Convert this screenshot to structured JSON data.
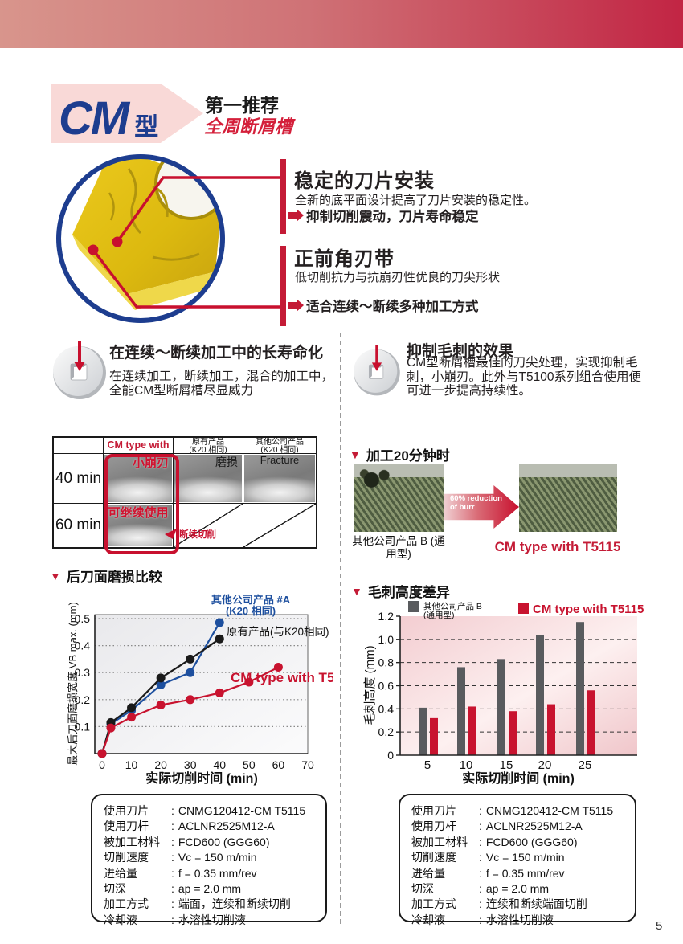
{
  "page_number": "5",
  "colors": {
    "accent_red": "#c41b36",
    "dark_blue": "#1d3d8f",
    "banner_left": "#d8958c",
    "banner_right": "#c22544",
    "bar_gray": "#595b5e"
  },
  "hero": {
    "badge_cm": "CM",
    "badge_type": "型",
    "tagline_1": "第一推荐",
    "tagline_2": "全周断屑槽",
    "feature_1": {
      "title": "稳定的刀片安装",
      "body": "全新的底平面设计提高了刀片安装的稳定性。",
      "point": "抑制切削震动，刀片寿命稳定"
    },
    "feature_2": {
      "title": "正前角刃带",
      "body": "低切削抗力与抗崩刃性优良的刀尖形状",
      "point": "适合连续～断续多种加工方式"
    }
  },
  "benefits": {
    "left": {
      "heading": "在连续～断续加工中的长寿命化",
      "body": "在连续加工，断续加工，混合的加工中，全能CM型断屑槽尽显威力"
    },
    "right": {
      "heading": "抑制毛刺的效果",
      "body": "CM型断屑槽最佳的刀尖处理，实现抑制毛刺，小崩刃。此外与T5100系列组合使用便可进一步提高持续性。"
    }
  },
  "wear_table": {
    "col1_header": "CM type with T5115",
    "col2_header_line1": "原有产品",
    "col2_header_line2": "(K20 相同)",
    "col3_header_line1": "其他公司产品",
    "col3_header_line2": "(K20 相同)",
    "row1_label": "40 min",
    "row2_label": "60 min",
    "r1c1_note": "小崩刃",
    "r1c2_note": "磨损",
    "r1c3_note": "Fracture",
    "r2c1_note": "可继续使用",
    "r2_callout": "断续切削"
  },
  "burr_demo": {
    "title": "加工20分钟时",
    "left_caption": "其他公司产品 B (通用型)",
    "arrow_text_line1": "60% reduction",
    "arrow_text_line2": "of burr",
    "right_caption": "CM type with T5115"
  },
  "chart_data": [
    {
      "type": "line",
      "title": "后刀面磨损比较",
      "xlabel": "实际切削时间 (min)",
      "ylabel": "最大后刀面磨损宽度 VB max. (mm)",
      "xlim": [
        0,
        70
      ],
      "ylim": [
        0,
        0.5
      ],
      "xticks": [
        0,
        10,
        20,
        30,
        40,
        50,
        60,
        70
      ],
      "yticks": [
        0.1,
        0.2,
        0.3,
        0.4,
        0.5
      ],
      "grid": "dotted horizontal",
      "series": [
        {
          "name": "其他公司产品 #A\n(K20 相同)",
          "color": "#1d4f9e",
          "x": [
            0,
            3,
            10,
            20,
            30,
            40
          ],
          "y": [
            0,
            0.11,
            0.16,
            0.255,
            0.3,
            0.485
          ]
        },
        {
          "name": "原有产品(与K20相同)",
          "color": "#1a1a1a",
          "x": [
            0,
            3,
            10,
            20,
            30,
            40
          ],
          "y": [
            0,
            0.115,
            0.17,
            0.28,
            0.35,
            0.425
          ]
        },
        {
          "name": "CM type with T5115",
          "color": "#c8132f",
          "x": [
            0,
            3,
            10,
            20,
            30,
            40,
            50,
            60
          ],
          "y": [
            0,
            0.095,
            0.135,
            0.18,
            0.2,
            0.225,
            0.265,
            0.32
          ]
        }
      ]
    },
    {
      "type": "bar",
      "title": "毛刺高度差异",
      "xlabel": "实际切削时间 (min)",
      "ylabel": "毛刺高度 (mm)",
      "categories": [
        "5",
        "10",
        "15",
        "20",
        "25"
      ],
      "ylim": [
        0,
        1.2
      ],
      "yticks": [
        0,
        0.2,
        0.4,
        0.6,
        0.8,
        1.0,
        1.2
      ],
      "grid": "dashed horizontal",
      "legend_position": "top",
      "series": [
        {
          "name": "其他公司产品 B\n(通用型)",
          "color": "#595b5e",
          "values": [
            0.41,
            0.76,
            0.83,
            1.04,
            1.15
          ]
        },
        {
          "name": "CM type with T5115",
          "color": "#c8132f",
          "values": [
            0.32,
            0.42,
            0.38,
            0.44,
            0.56
          ]
        }
      ]
    }
  ],
  "spec_left": {
    "rows": [
      {
        "label": "使用刀片",
        "value": "CNMG120412-CM T5115"
      },
      {
        "label": "使用刀杆",
        "value": "ACLNR2525M12-A"
      },
      {
        "label": "被加工材料",
        "value": "FCD600 (GGG60)"
      },
      {
        "label": "切削速度",
        "value": "Vc = 150 m/min"
      },
      {
        "label": "进给量",
        "value": "f = 0.35 mm/rev"
      },
      {
        "label": "切深",
        "value": "ap = 2.0 mm"
      },
      {
        "label": "加工方式",
        "value": "端面，连续和断续切削"
      },
      {
        "label": "冷却液",
        "value": "水溶性切削液"
      }
    ]
  },
  "spec_right": {
    "rows": [
      {
        "label": "使用刀片",
        "value": "CNMG120412-CM T5115"
      },
      {
        "label": "使用刀杆",
        "value": "ACLNR2525M12-A"
      },
      {
        "label": "被加工材料",
        "value": "FCD600 (GGG60)"
      },
      {
        "label": "切削速度",
        "value": "Vc = 150 m/min"
      },
      {
        "label": "进给量",
        "value": "f = 0.35 mm/rev"
      },
      {
        "label": "切深",
        "value": "ap = 2.0 mm"
      },
      {
        "label": "加工方式",
        "value": "连续和断续端面切削"
      },
      {
        "label": "冷却液",
        "value": "水溶性切削液"
      }
    ]
  }
}
